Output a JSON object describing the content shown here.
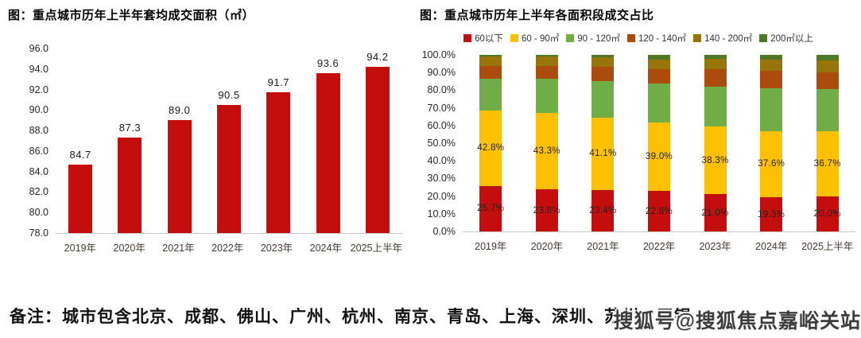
{
  "note": "备注：城市包含北京、成都、佛山、广州、杭州、南京、青岛、上海、深圳、苏州、无锡",
  "watermark": "搜狐号@搜狐焦点嘉峪关站",
  "chart_data": [
    {
      "type": "bar",
      "title": "图：重点城市历年上半年套均成交面积（㎡）",
      "categories": [
        "2019年",
        "2020年",
        "2021年",
        "2022年",
        "2023年",
        "2024年",
        "2025上半年"
      ],
      "values": [
        84.7,
        87.3,
        89.0,
        90.5,
        91.7,
        93.6,
        94.2
      ],
      "data_labels": [
        "84.7",
        "87.3",
        "89.0",
        "90.5",
        "91.7",
        "93.6",
        "94.2"
      ],
      "xlabel": "",
      "ylabel": "",
      "ylim": [
        78.0,
        96.0
      ],
      "ytick_step": 2.0,
      "ytick_labels": [
        "96.0",
        "94.0",
        "92.0",
        "90.0",
        "88.0",
        "86.0",
        "84.0",
        "82.0",
        "80.0",
        "78.0"
      ],
      "grid": false,
      "bar_color": "#c40d0d",
      "legend_position": "none"
    },
    {
      "type": "stacked-bar",
      "title": "图：重点城市历年上半年各面积段成交占比",
      "categories": [
        "2019年",
        "2020年",
        "2021年",
        "2022年",
        "2023年",
        "2024年",
        "2025上半年"
      ],
      "series": [
        {
          "name": "60以下",
          "color": "#c40d0d",
          "values": [
            25.7,
            23.8,
            23.4,
            22.8,
            21.0,
            19.3,
            20.0
          ],
          "labels_shown": true
        },
        {
          "name": "60 - 90㎡",
          "color": "#ffc000",
          "values": [
            42.8,
            43.3,
            41.1,
            39.0,
            38.3,
            37.6,
            36.7
          ],
          "labels_shown": true
        },
        {
          "name": "90 - 120㎡",
          "color": "#70ad47",
          "values": [
            17.8,
            19.2,
            20.6,
            21.9,
            22.6,
            24.2,
            23.8
          ],
          "labels_shown": false
        },
        {
          "name": "120 - 140㎡",
          "color": "#ab4c0e",
          "values": [
            7.6,
            7.6,
            8.0,
            8.3,
            9.8,
            9.8,
            9.7
          ],
          "labels_shown": false
        },
        {
          "name": "140 - 200㎡",
          "color": "#97750a",
          "values": [
            5.1,
            5.2,
            5.4,
            5.5,
            6.0,
            6.4,
            6.8
          ],
          "labels_shown": false
        },
        {
          "name": "200㎡以上",
          "color": "#4e7a27",
          "values": [
            1.0,
            0.9,
            1.5,
            2.5,
            2.3,
            2.7,
            3.0
          ],
          "labels_shown": false
        }
      ],
      "xlabel": "",
      "ylabel": "",
      "ylim": [
        0,
        100
      ],
      "ytick_step": 10,
      "ytick_labels": [
        "100.0%",
        "90.0%",
        "80.0%",
        "70.0%",
        "60.0%",
        "50.0%",
        "40.0%",
        "30.0%",
        "20.0%",
        "10.0%",
        "0.0%"
      ],
      "grid": false,
      "legend_position": "top"
    }
  ]
}
